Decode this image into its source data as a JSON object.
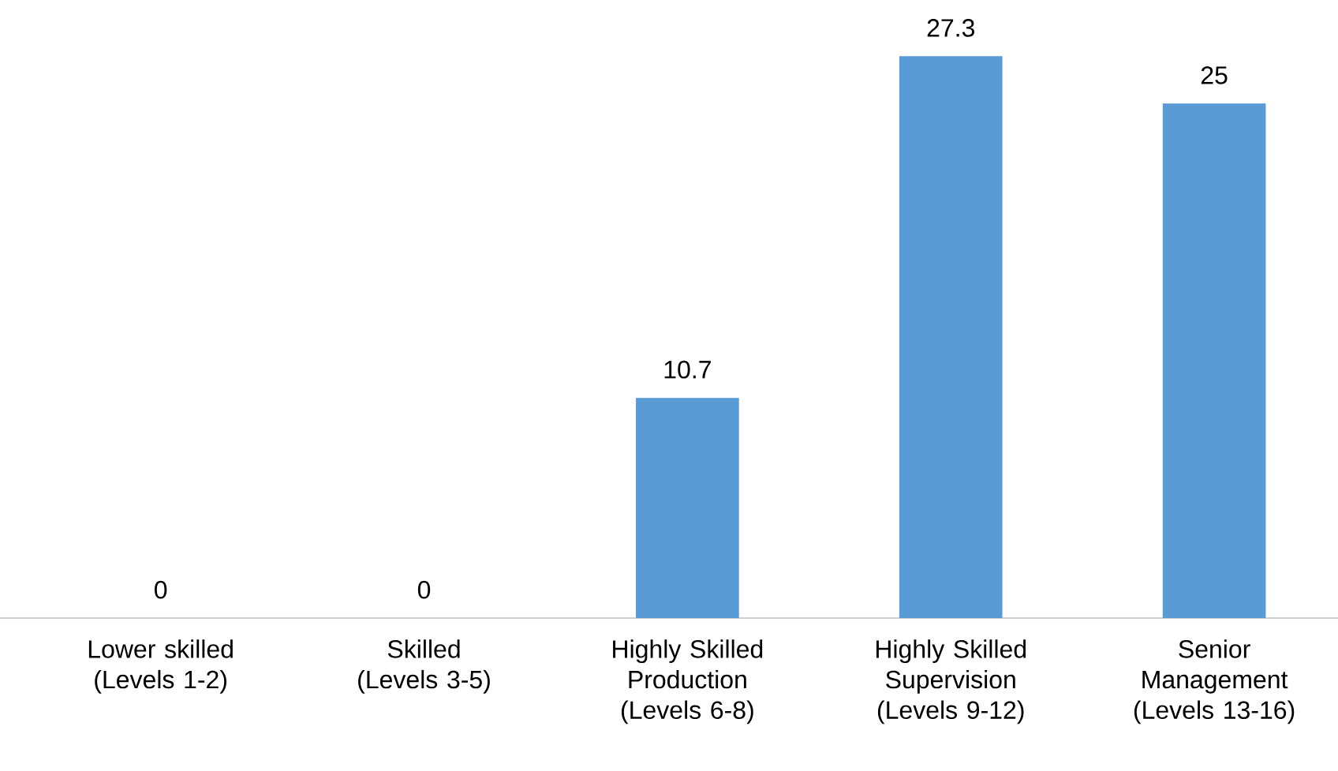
{
  "chart_data": {
    "type": "bar",
    "categories": [
      "Lower skilled (Levels 1-2)",
      "Skilled (Levels 3-5)",
      "Highly Skilled Production (Levels 6-8)",
      "Highly Skilled Supervision (Levels 9-12)",
      "Senior Management (Levels 13-16)"
    ],
    "values": [
      0,
      0,
      10.7,
      27.3,
      25
    ],
    "color": "#5b9bd5",
    "data_labels": true
  }
}
